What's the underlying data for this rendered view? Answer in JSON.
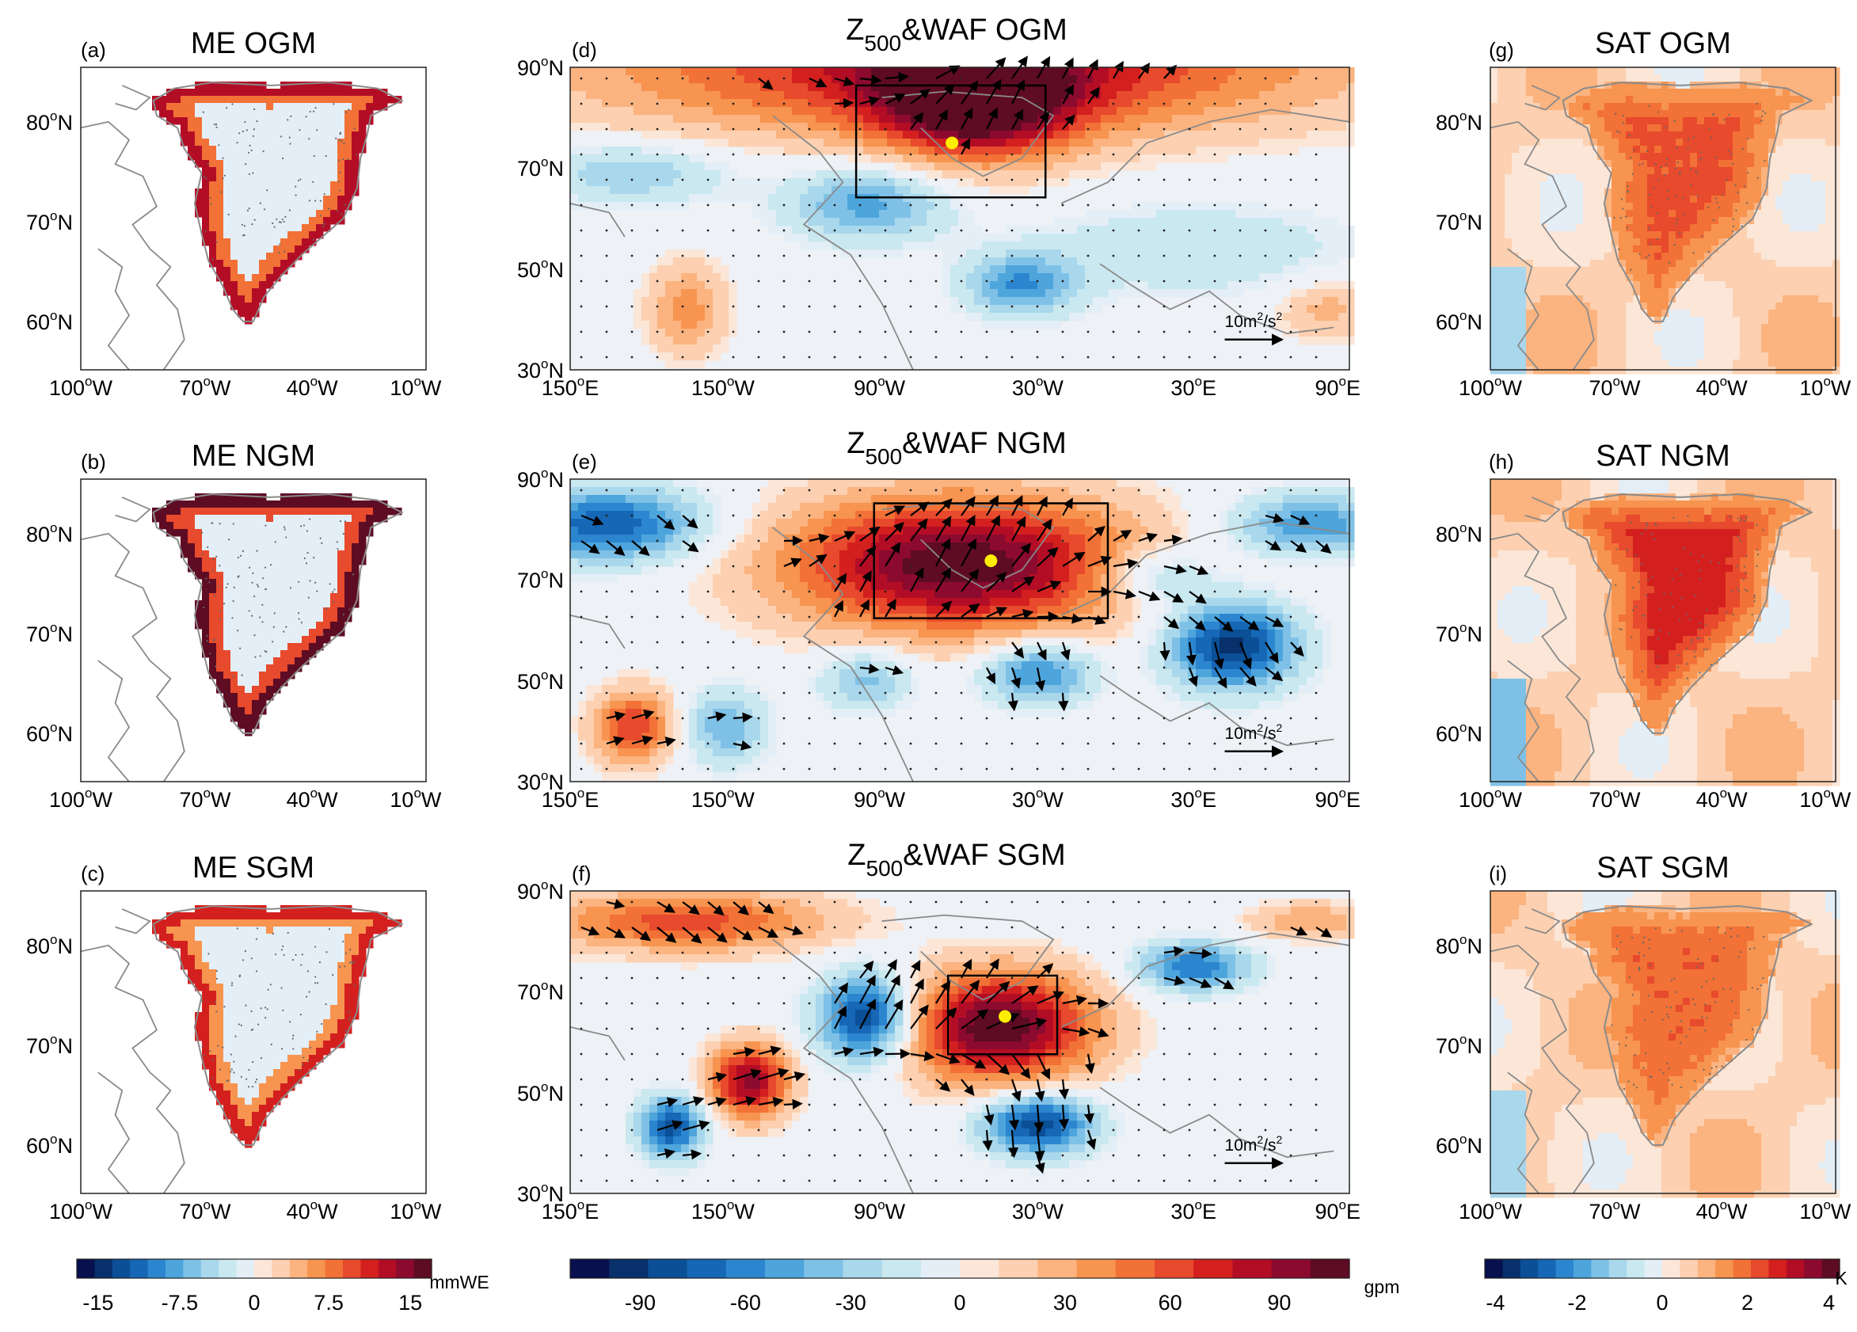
{
  "panels": [
    {
      "id": "a",
      "tag": "(a)",
      "title": "ME OGM",
      "kind": "greenland",
      "field": "me",
      "intensity": 0.75
    },
    {
      "id": "b",
      "tag": "(b)",
      "title": "ME NGM",
      "kind": "greenland",
      "field": "me",
      "intensity": 1.0
    },
    {
      "id": "c",
      "tag": "(c)",
      "title": "ME SGM",
      "kind": "greenland",
      "field": "me",
      "intensity": 0.65
    },
    {
      "id": "d",
      "tag": "(d)",
      "title_main": "Z",
      "title_sub": "500",
      "title_rest": "&WAF OGM",
      "kind": "hemi",
      "field": "z500",
      "scale_label": "10m²/s²",
      "scale_base": "10m",
      "scale_sup": "2",
      "scale_tail": "/s",
      "scale_sup2": "2"
    },
    {
      "id": "e",
      "tag": "(e)",
      "title_main": "Z",
      "title_sub": "500",
      "title_rest": "&WAF NGM",
      "kind": "hemi",
      "field": "z500",
      "scale_base": "10m",
      "scale_sup": "2",
      "scale_tail": "/s",
      "scale_sup2": "2"
    },
    {
      "id": "f",
      "tag": "(f)",
      "title_main": "Z",
      "title_sub": "500",
      "title_rest": "&WAF SGM",
      "kind": "hemi",
      "field": "z500",
      "scale_base": "10m",
      "scale_sup": "2",
      "scale_tail": "/s",
      "scale_sup2": "2"
    },
    {
      "id": "g",
      "tag": "(g)",
      "title": "SAT OGM",
      "kind": "greenland",
      "field": "sat",
      "intensity": 0.7
    },
    {
      "id": "h",
      "tag": "(h)",
      "title": "SAT NGM",
      "kind": "greenland",
      "field": "sat",
      "intensity": 1.0
    },
    {
      "id": "i",
      "tag": "(i)",
      "title": "SAT SGM",
      "kind": "greenland",
      "field": "sat",
      "intensity": 0.6
    }
  ],
  "greenland_axes": {
    "lat_ticks": [
      {
        "num": "80",
        "unit": "N"
      },
      {
        "num": "70",
        "unit": "N"
      },
      {
        "num": "60",
        "unit": "N"
      }
    ],
    "lon_ticks": [
      {
        "num": "100",
        "unit": "W"
      },
      {
        "num": "70",
        "unit": "W"
      },
      {
        "num": "40",
        "unit": "W"
      },
      {
        "num": "10",
        "unit": "W"
      }
    ]
  },
  "hemi_axes": {
    "lat_ticks": [
      {
        "num": "90",
        "unit": "N"
      },
      {
        "num": "70",
        "unit": "N"
      },
      {
        "num": "50",
        "unit": "N"
      },
      {
        "num": "30",
        "unit": "N"
      }
    ],
    "lon_ticks": [
      {
        "num": "150",
        "unit": "E"
      },
      {
        "num": "150",
        "unit": "W"
      },
      {
        "num": "90",
        "unit": "W"
      },
      {
        "num": "30",
        "unit": "W"
      },
      {
        "num": "30",
        "unit": "E"
      },
      {
        "num": "90",
        "unit": "E"
      }
    ]
  },
  "colorbars": [
    {
      "name": "me-colorbar",
      "unit": "mmWE",
      "ticks": [
        "-15",
        "-7.5",
        "0",
        "7.5",
        "15"
      ]
    },
    {
      "name": "z500-colorbar",
      "unit": "gpm",
      "ticks": [
        "-90",
        "-60",
        "-30",
        "0",
        "30",
        "60",
        "90"
      ]
    },
    {
      "name": "sat-colorbar",
      "unit": "K",
      "ticks": [
        "-4",
        "-2",
        "0",
        "2",
        "4"
      ]
    }
  ],
  "colors": {
    "scale": [
      "#08104e",
      "#08306b",
      "#0b4f96",
      "#1667b5",
      "#2c86cf",
      "#4ea5dc",
      "#7fc1e6",
      "#a9d7ec",
      "#c9e8ef",
      "#e4eef7",
      "#fbe6d8",
      "#fcd0b0",
      "#fbb37f",
      "#f7944f",
      "#f27136",
      "#e74a2c",
      "#d3201f",
      "#b30d26",
      "#8c0a2e",
      "#5e0b24"
    ],
    "coast": "#8a8a8a",
    "marker": "#ffee00"
  }
}
